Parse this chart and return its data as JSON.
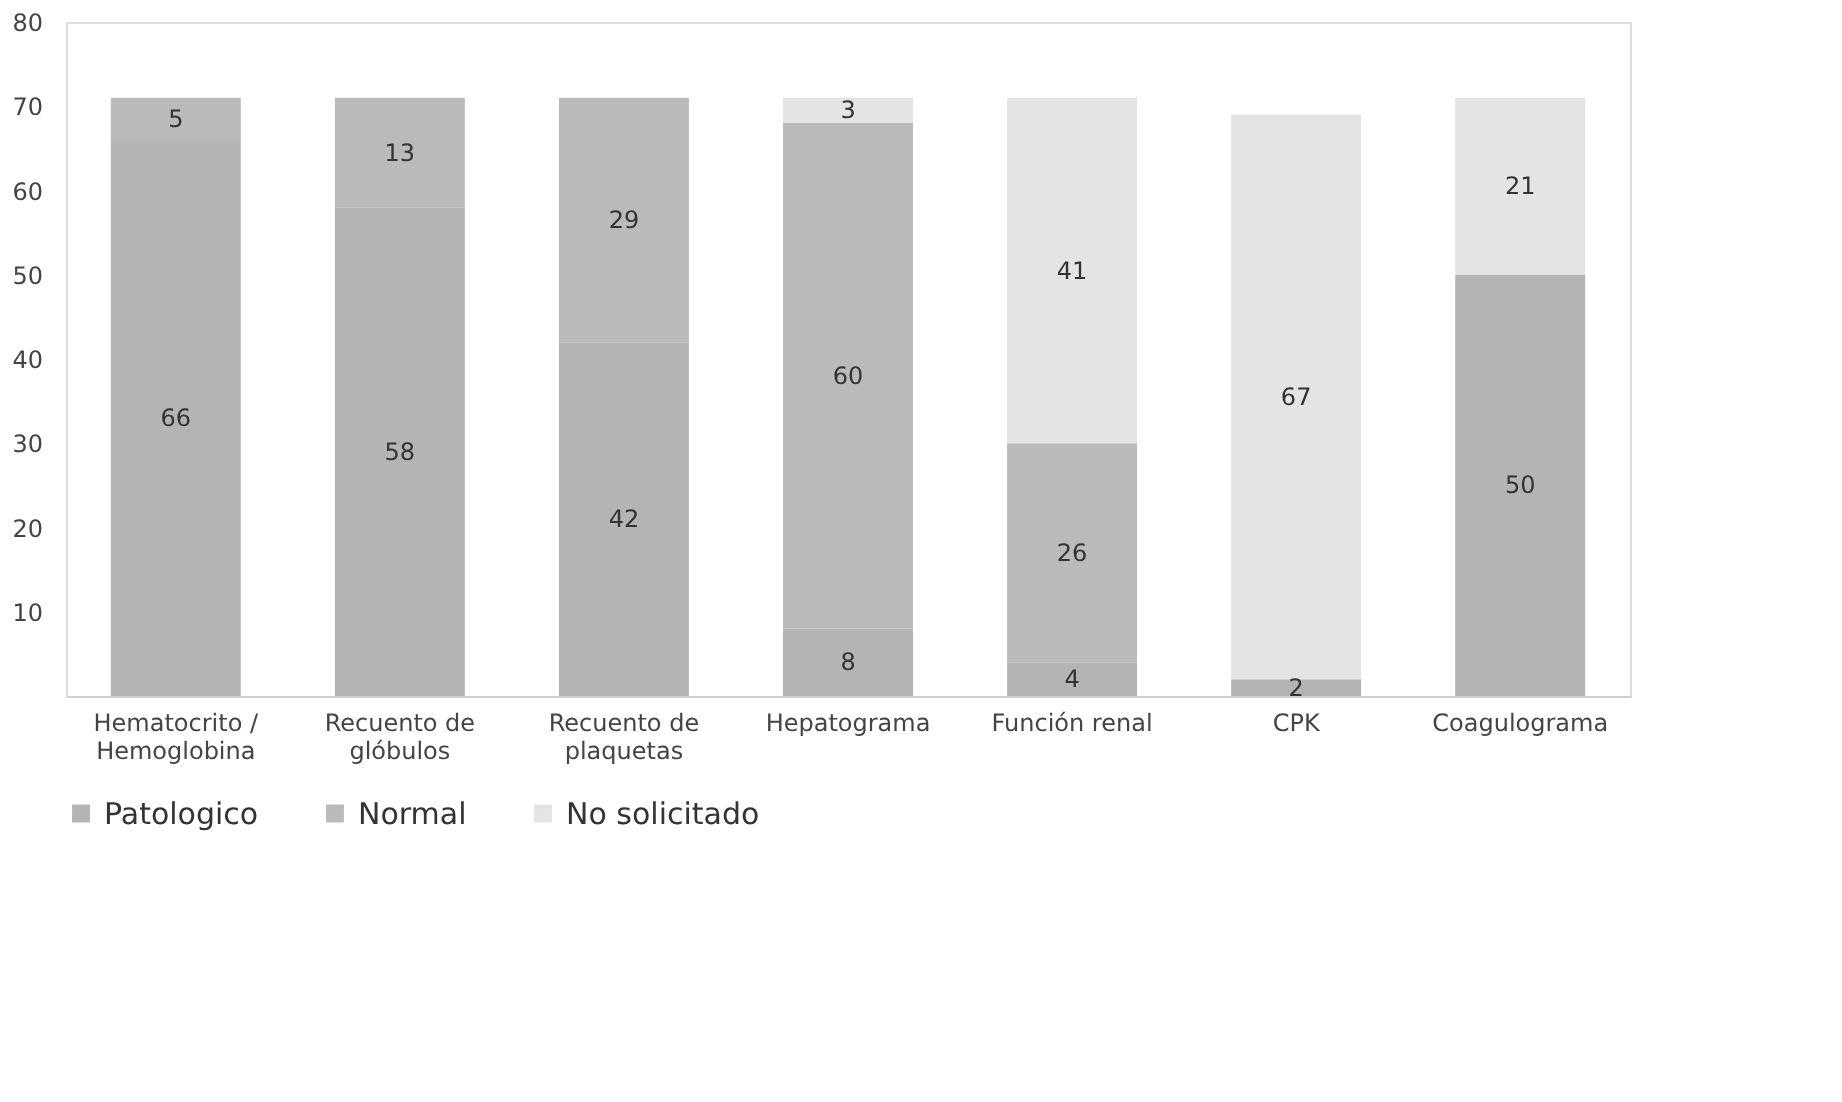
{
  "chart_data": {
    "type": "bar",
    "stacked": true,
    "data_labels": true,
    "legend": "bottom",
    "grid": false,
    "categories": [
      "Hematocrito / Hemoglobina",
      "Recuento de glóbulos",
      "Recuento de plaquetas",
      "Hepatograma",
      "Función renal",
      "CPK",
      "Coagulograma"
    ],
    "series": [
      {
        "name": "Patologico",
        "color": "#b4b4b4",
        "values": [
          66,
          58,
          42,
          8,
          4,
          2,
          50
        ]
      },
      {
        "name": "Normal",
        "color": "#bababa",
        "values": [
          5,
          13,
          29,
          60,
          26,
          null,
          null
        ]
      },
      {
        "name": "No solicitado",
        "color": "#e4e4e4",
        "values": [
          null,
          null,
          null,
          3,
          41,
          67,
          21
        ]
      }
    ],
    "ylim": [
      0,
      80
    ],
    "yticks": [
      10,
      20,
      30,
      40,
      50,
      60,
      70,
      80
    ]
  }
}
